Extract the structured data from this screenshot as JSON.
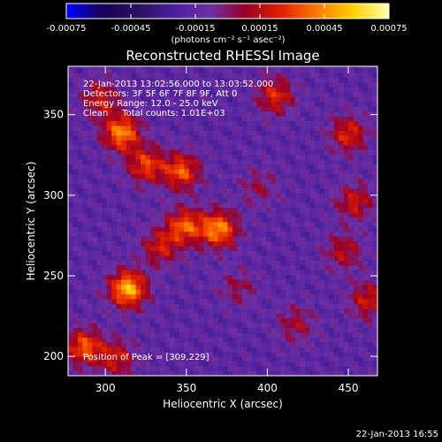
{
  "chart_data": {
    "type": "heatmap",
    "title": "Reconstructed RHESSI Image",
    "xlabel": "Heliocentric X (arcsec)",
    "ylabel": "Heliocentric Y (arcsec)",
    "xlim": [
      277,
      468
    ],
    "ylim": [
      188,
      380
    ],
    "x_ticks": [
      300,
      350,
      400,
      450
    ],
    "y_ticks": [
      200,
      250,
      300,
      350
    ],
    "colorbar": {
      "min": -0.00075,
      "max": 0.00075,
      "ticks": [
        "-0.00075",
        "-0.00045",
        "-0.00015",
        "0.00015",
        "0.00045",
        "0.00075"
      ],
      "unit_label": "(photons cm⁻² s⁻¹ asec⁻²)",
      "colormap": [
        "#0000ff",
        "#1a0058",
        "#2b1060",
        "#4a1f9a",
        "#6b2fa6",
        "#9a0025",
        "#e02000",
        "#ff7a00",
        "#ffd200",
        "#ffffb0"
      ]
    },
    "annotations": [
      "22-Jan-2013 13:02:56.000 to 13:03:52.000",
      "Detectors: 3F 5F 6F 7F 8F 9F, Att 0",
      "Energy Range: 12.0 - 25.0 keV",
      "Clean     Total counts: 1.01E+03"
    ],
    "peak_label": "Position of Peak = [309,229]",
    "sources": [
      {
        "x": 310,
        "y": 339,
        "value": 0.0006
      },
      {
        "x": 325,
        "y": 319,
        "value": 0.00045
      },
      {
        "x": 347,
        "y": 315,
        "value": 0.0005
      },
      {
        "x": 370,
        "y": 279,
        "value": 0.0006
      },
      {
        "x": 349,
        "y": 281,
        "value": 0.0005
      },
      {
        "x": 334,
        "y": 268,
        "value": 0.00035
      },
      {
        "x": 314,
        "y": 242,
        "value": 0.0007
      },
      {
        "x": 287,
        "y": 206,
        "value": 0.0005
      },
      {
        "x": 307,
        "y": 199,
        "value": 0.00035
      },
      {
        "x": 297,
        "y": 360,
        "value": 0.00035
      },
      {
        "x": 405,
        "y": 362,
        "value": 0.0004
      },
      {
        "x": 450,
        "y": 338,
        "value": 0.0004
      },
      {
        "x": 454,
        "y": 296,
        "value": 0.00035
      },
      {
        "x": 447,
        "y": 265,
        "value": 0.0003
      },
      {
        "x": 462,
        "y": 235,
        "value": 0.00035
      },
      {
        "x": 395,
        "y": 305,
        "value": 0.0002
      },
      {
        "x": 418,
        "y": 220,
        "value": 0.00025
      },
      {
        "x": 382,
        "y": 243,
        "value": 0.0002
      }
    ]
  },
  "footer": {
    "timestamp": "22-Jan-2013 16:55"
  }
}
